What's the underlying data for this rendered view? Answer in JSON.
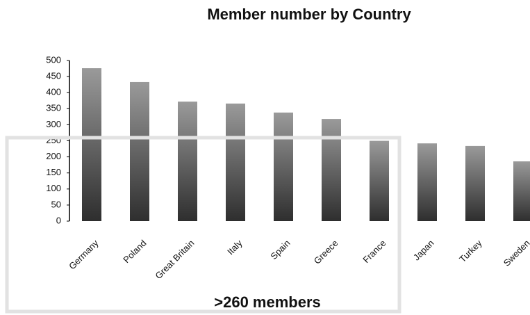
{
  "chart_data": {
    "type": "bar",
    "title": "Member number by Country",
    "categories": [
      "Germany",
      "Poland",
      "Great Britain",
      "Italy",
      "Spain",
      "Greece",
      "France",
      "Japan",
      "Turkey",
      "Sweden"
    ],
    "values": [
      476,
      433,
      372,
      366,
      338,
      318,
      250,
      242,
      234,
      186
    ],
    "color": "#555555",
    "ylim": [
      0,
      500
    ],
    "yticks": [
      0,
      50,
      100,
      150,
      200,
      250,
      300,
      350,
      400,
      450,
      500
    ],
    "annotation": ">260 members"
  }
}
